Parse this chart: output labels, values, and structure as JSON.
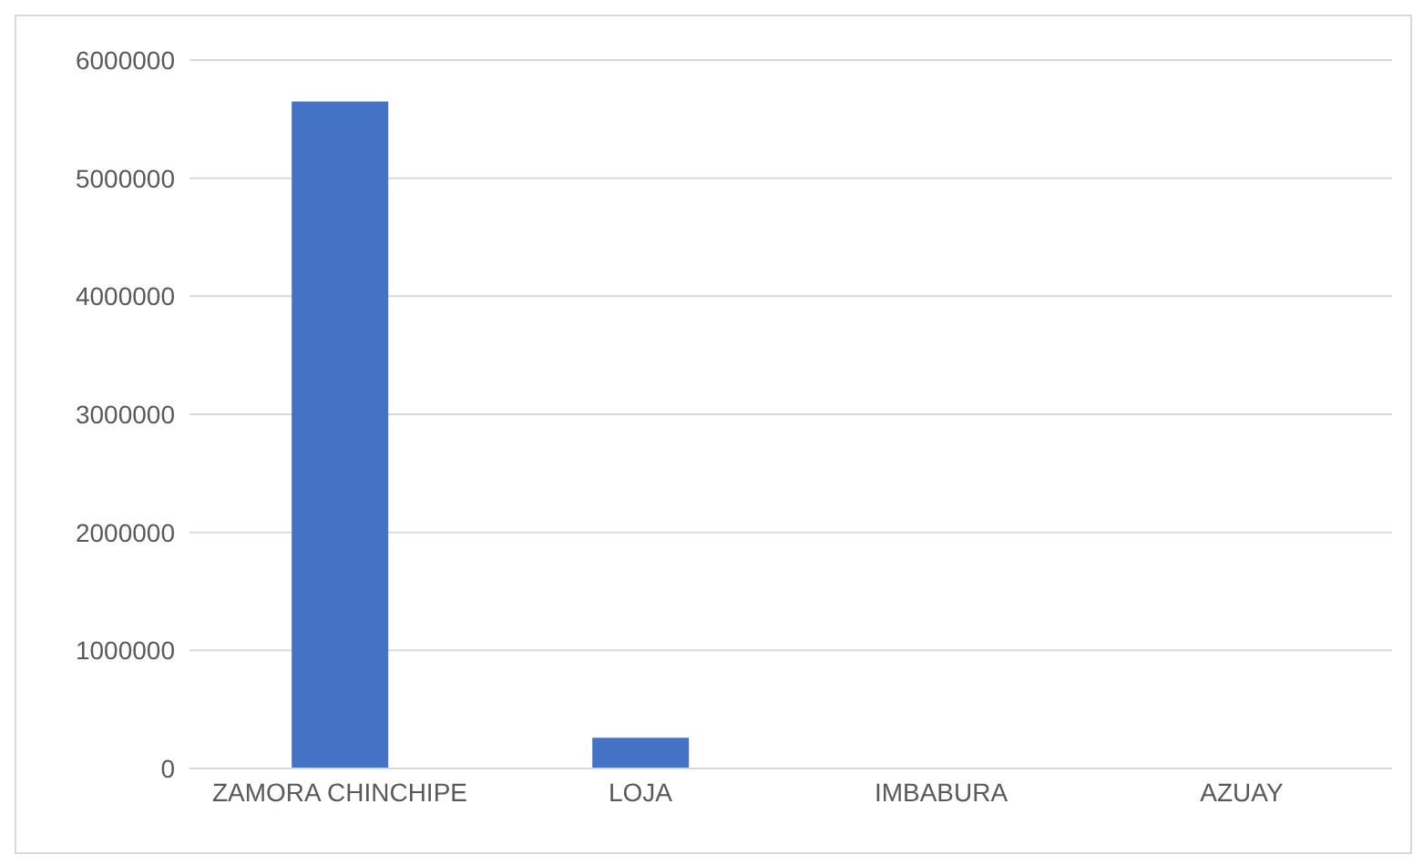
{
  "chart_data": {
    "type": "bar",
    "categories": [
      "ZAMORA CHINCHIPE",
      "LOJA",
      "IMBABURA",
      "AZUAY"
    ],
    "values": [
      5650000,
      260000,
      0,
      0
    ],
    "color": "#4472c4",
    "ylim": [
      0,
      6000000
    ],
    "yticks": [
      0,
      1000000,
      2000000,
      3000000,
      4000000,
      5000000,
      6000000
    ],
    "grid": "y"
  }
}
